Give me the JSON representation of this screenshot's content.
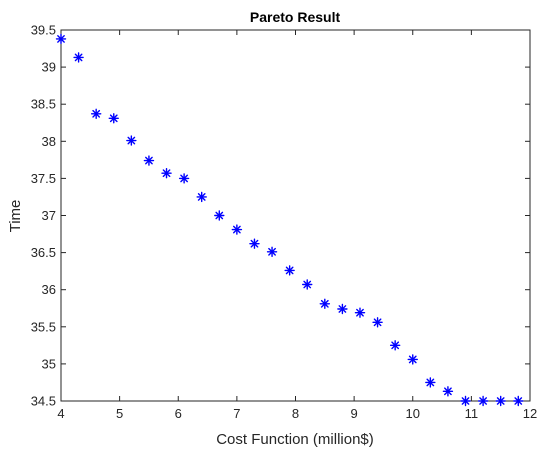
{
  "chart_data": {
    "type": "scatter",
    "title": "Pareto Result",
    "xlabel": "Cost Function (million$)",
    "ylabel": "Time",
    "xlim": [
      4,
      12
    ],
    "ylim": [
      34.5,
      39.5
    ],
    "xticks": [
      4,
      5,
      6,
      7,
      8,
      9,
      10,
      11,
      12
    ],
    "yticks": [
      34.5,
      35,
      35.5,
      36,
      36.5,
      37,
      37.5,
      38,
      38.5,
      39,
      39.5
    ],
    "xtick_labels": [
      "4",
      "5",
      "6",
      "7",
      "8",
      "9",
      "10",
      "11",
      "12"
    ],
    "ytick_labels": [
      "34.5",
      "35",
      "35.5",
      "36",
      "36.5",
      "37",
      "37.5",
      "38",
      "38.5",
      "39",
      "39.5"
    ],
    "grid": false,
    "marker": "asterisk",
    "color": "#0000ff",
    "series": [
      {
        "x": [
          4.0,
          4.3,
          4.6,
          4.9,
          5.2,
          5.5,
          5.8,
          6.1,
          6.4,
          6.7,
          7.0,
          7.3,
          7.6,
          7.9,
          8.2,
          8.5,
          8.8,
          9.1,
          9.4,
          9.7,
          10.0,
          10.3,
          10.6,
          10.9,
          11.2,
          11.5,
          11.8
        ],
        "y": [
          39.38,
          39.13,
          38.37,
          38.31,
          38.01,
          37.74,
          37.57,
          37.5,
          37.25,
          37.0,
          36.81,
          36.62,
          36.51,
          36.26,
          36.07,
          35.81,
          35.74,
          35.69,
          35.56,
          35.25,
          35.06,
          34.75,
          34.63,
          34.5,
          34.5,
          34.5,
          34.5
        ]
      }
    ]
  }
}
